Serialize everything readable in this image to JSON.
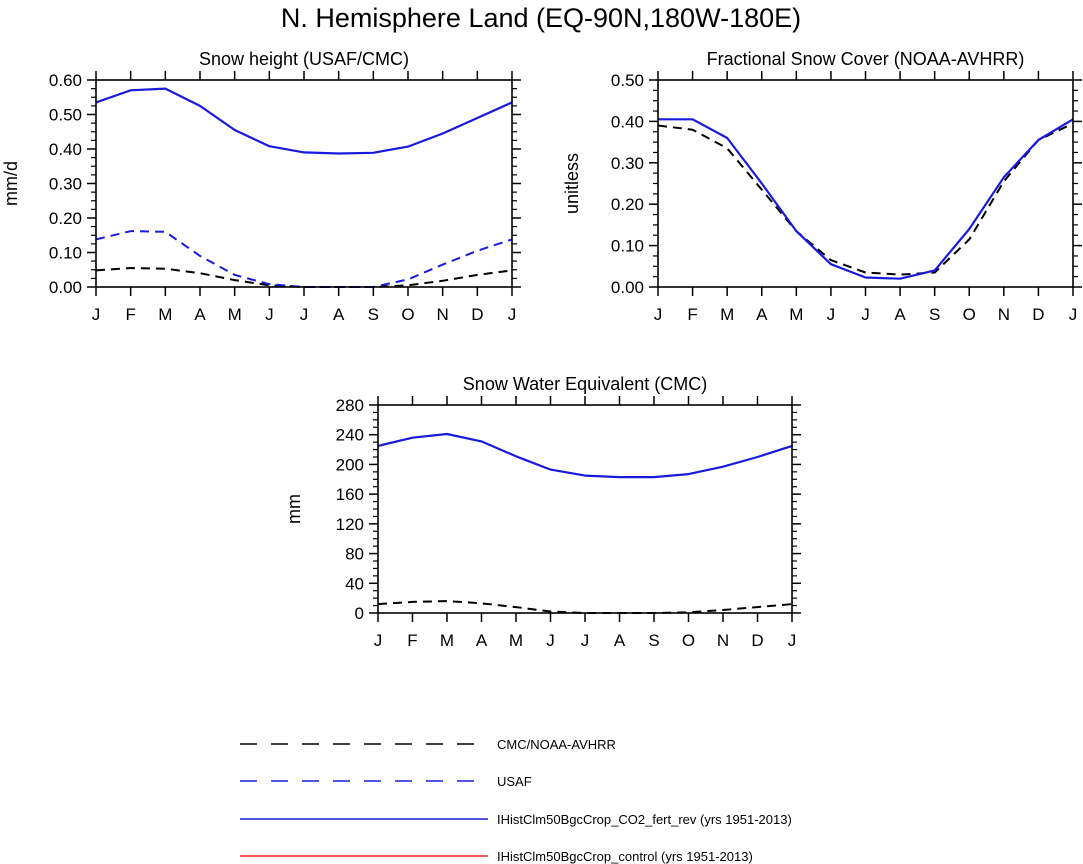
{
  "figure": {
    "title": "N. Hemisphere Land (EQ-90N,180W-180E)",
    "colors": {
      "axis": "#000000",
      "cmc_noaa": "#000000",
      "usaf": "#1a1adc",
      "co2_fert_rev": "#1a1adc",
      "control": "#ff2020"
    }
  },
  "legend": [
    {
      "label": "CMC/NOAA-AVHRR",
      "color": "#000000",
      "style": "dashed"
    },
    {
      "label": "USAF",
      "color": "#1a1adc",
      "style": "dashed"
    },
    {
      "label": "IHistClm50BgcCrop_CO2_fert_rev (yrs 1951-2013)",
      "color": "#1a1adc",
      "style": "solid"
    },
    {
      "label": "IHistClm50BgcCrop_control (yrs 1951-2013)",
      "color": "#ff2020",
      "style": "solid"
    }
  ],
  "chart_data": [
    {
      "type": "line",
      "title": "Snow height (USAF/CMC)",
      "xlabel": "",
      "ylabel": "mm/d",
      "categories": [
        "J",
        "F",
        "M",
        "A",
        "M",
        "J",
        "J",
        "A",
        "S",
        "O",
        "N",
        "D",
        "J"
      ],
      "ylim": [
        0,
        0.6
      ],
      "yticks": [
        0,
        0.1,
        0.2,
        0.3,
        0.4,
        0.5,
        0.6
      ],
      "ytick_labels": [
        "0.00",
        "0.10",
        "0.20",
        "0.30",
        "0.40",
        "0.50",
        "0.60"
      ],
      "series": [
        {
          "name": "IHistClm50BgcCrop_CO2_fert_rev (yrs 1951-2013)",
          "color": "#1a1adc",
          "style": "solid",
          "values": [
            0.535,
            0.57,
            0.575,
            0.525,
            0.455,
            0.408,
            0.39,
            0.387,
            0.389,
            0.407,
            0.445,
            0.49,
            0.535
          ]
        },
        {
          "name": "USAF",
          "color": "#1a1adc",
          "style": "dashed",
          "values": [
            0.138,
            0.162,
            0.16,
            0.09,
            0.035,
            0.008,
            0.0,
            0.0,
            0.0,
            0.022,
            0.065,
            0.105,
            0.138
          ]
        },
        {
          "name": "CMC/NOAA-AVHRR",
          "color": "#000000",
          "style": "dashed",
          "values": [
            0.048,
            0.055,
            0.053,
            0.04,
            0.02,
            0.005,
            0.0,
            0.0,
            0.0,
            0.005,
            0.018,
            0.035,
            0.048
          ]
        }
      ]
    },
    {
      "type": "line",
      "title": "Fractional Snow Cover (NOAA-AVHRR)",
      "xlabel": "",
      "ylabel": "unitless",
      "categories": [
        "J",
        "F",
        "M",
        "A",
        "M",
        "J",
        "J",
        "A",
        "S",
        "O",
        "N",
        "D",
        "J"
      ],
      "ylim": [
        0,
        0.5
      ],
      "yticks": [
        0,
        0.1,
        0.2,
        0.3,
        0.4,
        0.5
      ],
      "ytick_labels": [
        "0.00",
        "0.10",
        "0.20",
        "0.30",
        "0.40",
        "0.50"
      ],
      "series": [
        {
          "name": "IHistClm50BgcCrop_CO2_fert_rev (yrs 1951-2013)",
          "color": "#1a1adc",
          "style": "solid",
          "values": [
            0.405,
            0.405,
            0.36,
            0.25,
            0.135,
            0.055,
            0.023,
            0.02,
            0.04,
            0.14,
            0.265,
            0.355,
            0.405
          ]
        },
        {
          "name": "CMC/NOAA-AVHRR",
          "color": "#000000",
          "style": "dashed",
          "values": [
            0.39,
            0.38,
            0.335,
            0.235,
            0.135,
            0.065,
            0.035,
            0.03,
            0.035,
            0.115,
            0.255,
            0.355,
            0.395
          ]
        }
      ]
    },
    {
      "type": "line",
      "title": "Snow Water Equivalent (CMC)",
      "xlabel": "",
      "ylabel": "mm",
      "categories": [
        "J",
        "F",
        "M",
        "A",
        "M",
        "J",
        "J",
        "A",
        "S",
        "O",
        "N",
        "D",
        "J"
      ],
      "ylim": [
        0,
        280
      ],
      "yticks": [
        0,
        40,
        80,
        120,
        160,
        200,
        240,
        280
      ],
      "ytick_labels": [
        "0",
        "40",
        "80",
        "120",
        "160",
        "200",
        "240",
        "280"
      ],
      "series": [
        {
          "name": "IHistClm50BgcCrop_CO2_fert_rev (yrs 1951-2013)",
          "color": "#1a1adc",
          "style": "solid",
          "values": [
            225,
            236,
            241,
            231,
            211,
            193,
            185,
            183,
            183,
            187,
            197,
            210,
            225
          ]
        },
        {
          "name": "CMC/NOAA-AVHRR",
          "color": "#000000",
          "style": "dashed",
          "values": [
            12,
            15,
            16,
            13,
            8,
            2,
            0,
            0,
            0,
            1,
            4,
            8,
            12
          ]
        }
      ]
    }
  ]
}
